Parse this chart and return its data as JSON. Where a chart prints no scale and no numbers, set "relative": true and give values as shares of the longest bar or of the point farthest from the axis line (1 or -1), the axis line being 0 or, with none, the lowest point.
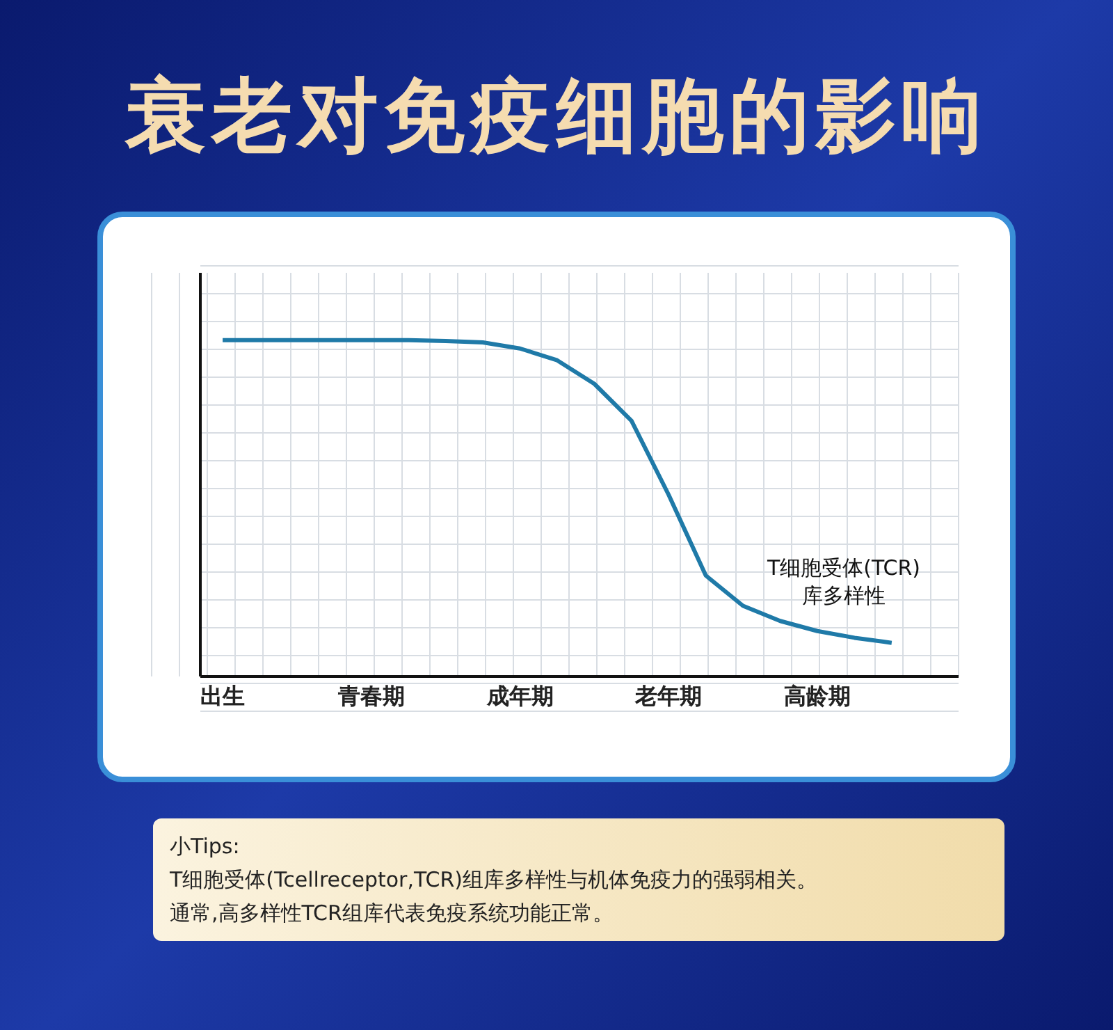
{
  "chart_data": {
    "type": "line",
    "title": "衰老对免疫细胞的影响",
    "relative": true,
    "categories": [
      "出生",
      null,
      null,
      null,
      "青春期",
      null,
      null,
      null,
      "成年期",
      null,
      null,
      null,
      "老年期",
      null,
      null,
      null,
      "高龄期",
      null,
      null
    ],
    "series": [
      {
        "name": "T细胞受体(TCR)库多样性",
        "color": "#1f7aa8",
        "values": [
          1,
          1,
          1,
          1,
          1,
          1,
          0.997,
          0.993,
          0.975,
          0.94,
          0.87,
          0.76,
          0.54,
          0.3,
          0.21,
          0.165,
          0.135,
          0.115,
          0.1
        ]
      }
    ],
    "grid": true,
    "legend": false,
    "marker": "none",
    "line_style": "solid",
    "annotations": [
      "小Tips:",
      "T细胞受体(Tcellreceptor,TCR)组库多样性与机体免疫力的强弱相关。",
      "通常,高多样性TCR组库代表免疫系统功能正常。"
    ]
  }
}
